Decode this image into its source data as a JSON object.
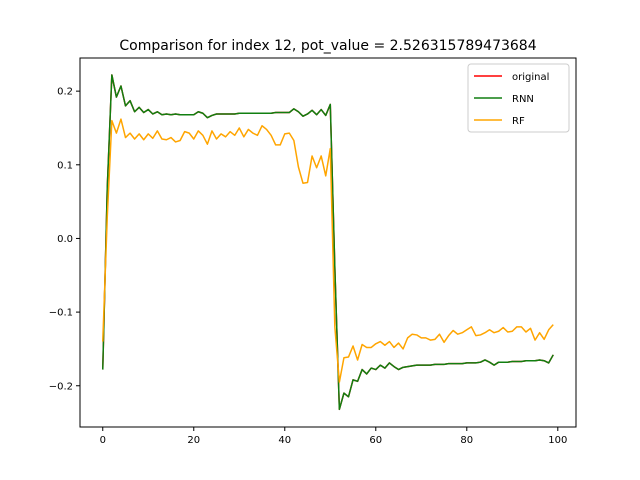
{
  "chart_data": {
    "type": "line",
    "title": "Comparison for index 12, pot_value = 2.526315789473684",
    "xlabel": "",
    "ylabel": "",
    "xlim": [
      -5,
      104
    ],
    "ylim": [
      -0.256,
      0.245
    ],
    "xticks": [
      0,
      20,
      40,
      60,
      80,
      100
    ],
    "yticks": [
      -0.2,
      -0.1,
      0.0,
      0.1,
      0.2
    ],
    "xtick_labels": [
      "0",
      "20",
      "40",
      "60",
      "80",
      "100"
    ],
    "ytick_labels": [
      "−0.2",
      "−0.1",
      "0.0",
      "0.1",
      "0.2"
    ],
    "grid": false,
    "legend_position": "top-right",
    "series": [
      {
        "name": "original",
        "color": "#ff0000",
        "x": [
          0,
          1,
          2,
          3,
          4,
          5,
          6,
          7,
          8,
          9,
          10,
          11,
          12,
          13,
          14,
          15,
          16,
          17,
          18,
          19,
          20,
          21,
          22,
          23,
          24,
          25,
          26,
          27,
          28,
          29,
          30,
          31,
          32,
          33,
          34,
          35,
          36,
          37,
          38,
          39,
          40,
          41,
          42,
          43,
          44,
          45,
          46,
          47,
          48,
          49,
          50,
          51,
          52,
          53,
          54,
          55,
          56,
          57,
          58,
          59,
          60,
          61,
          62,
          63,
          64,
          65,
          66,
          67,
          68,
          69,
          70,
          71,
          72,
          73,
          74,
          75,
          76,
          77,
          78,
          79,
          80,
          81,
          82,
          83,
          84,
          85,
          86,
          87,
          88,
          89,
          90,
          91,
          92,
          93,
          94,
          95,
          96,
          97,
          98,
          99
        ],
        "values": [
          -0.178,
          0.07,
          0.222,
          0.192,
          0.207,
          0.18,
          0.187,
          0.172,
          0.178,
          0.171,
          0.175,
          0.169,
          0.172,
          0.168,
          0.169,
          0.168,
          0.169,
          0.168,
          0.168,
          0.168,
          0.168,
          0.172,
          0.17,
          0.164,
          0.167,
          0.169,
          0.169,
          0.169,
          0.169,
          0.169,
          0.17,
          0.17,
          0.17,
          0.17,
          0.17,
          0.17,
          0.17,
          0.17,
          0.171,
          0.171,
          0.171,
          0.171,
          0.176,
          0.172,
          0.166,
          0.169,
          0.174,
          0.168,
          0.175,
          0.167,
          0.182,
          -0.04,
          -0.232,
          -0.21,
          -0.215,
          -0.192,
          -0.194,
          -0.178,
          -0.184,
          -0.176,
          -0.178,
          -0.172,
          -0.176,
          -0.169,
          -0.174,
          -0.178,
          -0.175,
          -0.174,
          -0.173,
          -0.172,
          -0.172,
          -0.172,
          -0.172,
          -0.171,
          -0.171,
          -0.171,
          -0.17,
          -0.17,
          -0.17,
          -0.17,
          -0.169,
          -0.169,
          -0.169,
          -0.168,
          -0.165,
          -0.168,
          -0.172,
          -0.168,
          -0.168,
          -0.168,
          -0.167,
          -0.167,
          -0.167,
          -0.166,
          -0.166,
          -0.166,
          -0.165,
          -0.166,
          -0.169,
          -0.158
        ]
      },
      {
        "name": "RNN",
        "color": "#107f10",
        "x": [
          0,
          1,
          2,
          3,
          4,
          5,
          6,
          7,
          8,
          9,
          10,
          11,
          12,
          13,
          14,
          15,
          16,
          17,
          18,
          19,
          20,
          21,
          22,
          23,
          24,
          25,
          26,
          27,
          28,
          29,
          30,
          31,
          32,
          33,
          34,
          35,
          36,
          37,
          38,
          39,
          40,
          41,
          42,
          43,
          44,
          45,
          46,
          47,
          48,
          49,
          50,
          51,
          52,
          53,
          54,
          55,
          56,
          57,
          58,
          59,
          60,
          61,
          62,
          63,
          64,
          65,
          66,
          67,
          68,
          69,
          70,
          71,
          72,
          73,
          74,
          75,
          76,
          77,
          78,
          79,
          80,
          81,
          82,
          83,
          84,
          85,
          86,
          87,
          88,
          89,
          90,
          91,
          92,
          93,
          94,
          95,
          96,
          97,
          98,
          99
        ],
        "values": [
          -0.178,
          0.07,
          0.222,
          0.192,
          0.207,
          0.18,
          0.187,
          0.172,
          0.178,
          0.171,
          0.175,
          0.169,
          0.172,
          0.168,
          0.169,
          0.168,
          0.169,
          0.168,
          0.168,
          0.168,
          0.168,
          0.172,
          0.17,
          0.164,
          0.167,
          0.169,
          0.169,
          0.169,
          0.169,
          0.169,
          0.17,
          0.17,
          0.17,
          0.17,
          0.17,
          0.17,
          0.17,
          0.17,
          0.171,
          0.171,
          0.171,
          0.171,
          0.176,
          0.172,
          0.166,
          0.169,
          0.174,
          0.168,
          0.175,
          0.167,
          0.182,
          -0.04,
          -0.232,
          -0.21,
          -0.215,
          -0.192,
          -0.194,
          -0.178,
          -0.184,
          -0.176,
          -0.178,
          -0.172,
          -0.176,
          -0.169,
          -0.174,
          -0.178,
          -0.175,
          -0.174,
          -0.173,
          -0.172,
          -0.172,
          -0.172,
          -0.172,
          -0.171,
          -0.171,
          -0.171,
          -0.17,
          -0.17,
          -0.17,
          -0.17,
          -0.169,
          -0.169,
          -0.169,
          -0.168,
          -0.165,
          -0.168,
          -0.172,
          -0.168,
          -0.168,
          -0.168,
          -0.167,
          -0.167,
          -0.167,
          -0.166,
          -0.166,
          -0.166,
          -0.165,
          -0.166,
          -0.169,
          -0.158
        ]
      },
      {
        "name": "RF",
        "color": "#ffa500",
        "x": [
          0,
          1,
          2,
          3,
          4,
          5,
          6,
          7,
          8,
          9,
          10,
          11,
          12,
          13,
          14,
          15,
          16,
          17,
          18,
          19,
          20,
          21,
          22,
          23,
          24,
          25,
          26,
          27,
          28,
          29,
          30,
          31,
          32,
          33,
          34,
          35,
          36,
          37,
          38,
          39,
          40,
          41,
          42,
          43,
          44,
          45,
          46,
          47,
          48,
          49,
          50,
          51,
          52,
          53,
          54,
          55,
          56,
          57,
          58,
          59,
          60,
          61,
          62,
          63,
          64,
          65,
          66,
          67,
          68,
          69,
          70,
          71,
          72,
          73,
          74,
          75,
          76,
          77,
          78,
          79,
          80,
          81,
          82,
          83,
          84,
          85,
          86,
          87,
          88,
          89,
          90,
          91,
          92,
          93,
          94,
          95,
          96,
          97,
          98,
          99
        ],
        "values": [
          -0.14,
          0.03,
          0.16,
          0.143,
          0.162,
          0.137,
          0.143,
          0.135,
          0.142,
          0.134,
          0.142,
          0.136,
          0.146,
          0.135,
          0.134,
          0.137,
          0.131,
          0.133,
          0.145,
          0.143,
          0.135,
          0.146,
          0.14,
          0.128,
          0.146,
          0.135,
          0.142,
          0.138,
          0.145,
          0.14,
          0.15,
          0.138,
          0.148,
          0.143,
          0.14,
          0.153,
          0.148,
          0.14,
          0.127,
          0.127,
          0.142,
          0.143,
          0.133,
          0.097,
          0.075,
          0.076,
          0.112,
          0.096,
          0.112,
          0.085,
          0.122,
          -0.12,
          -0.195,
          -0.162,
          -0.161,
          -0.146,
          -0.165,
          -0.144,
          -0.148,
          -0.148,
          -0.143,
          -0.14,
          -0.145,
          -0.14,
          -0.148,
          -0.142,
          -0.15,
          -0.135,
          -0.13,
          -0.131,
          -0.135,
          -0.135,
          -0.138,
          -0.137,
          -0.13,
          -0.141,
          -0.132,
          -0.125,
          -0.13,
          -0.128,
          -0.124,
          -0.12,
          -0.132,
          -0.131,
          -0.128,
          -0.124,
          -0.128,
          -0.126,
          -0.121,
          -0.127,
          -0.126,
          -0.12,
          -0.12,
          -0.127,
          -0.122,
          -0.138,
          -0.128,
          -0.137,
          -0.124,
          -0.117
        ]
      }
    ]
  }
}
